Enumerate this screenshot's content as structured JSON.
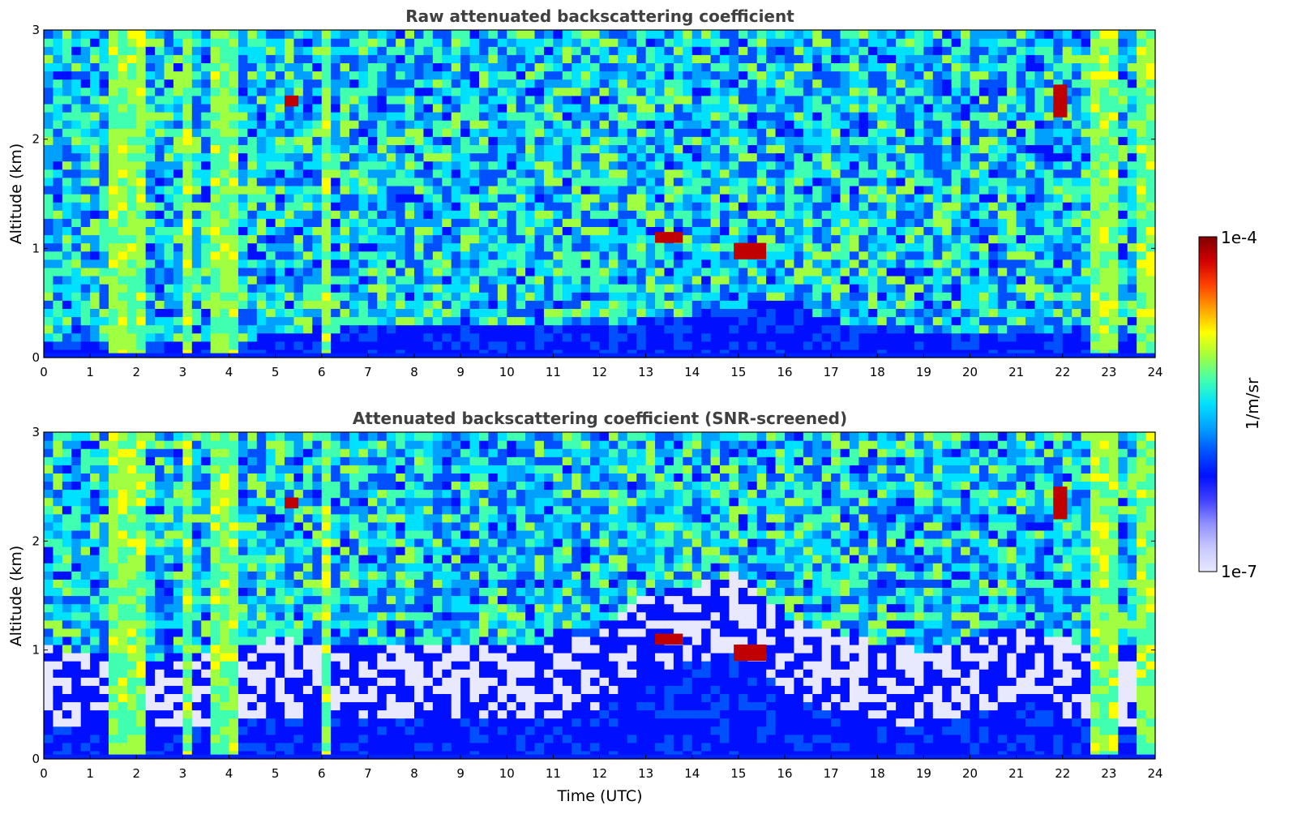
{
  "figure": {
    "colorbar": {
      "label": "1/m/sr",
      "max_label": "1e-4",
      "min_label": "1e-7",
      "colors": [
        "#e8e8ff",
        "#c8c8ff",
        "#9090ff",
        "#4040ff",
        "#0010ff",
        "#0050ff",
        "#00a0ff",
        "#00e0ff",
        "#40ffb0",
        "#a0ff40",
        "#ffff00",
        "#ffa000",
        "#ff4000",
        "#d00000",
        "#800000"
      ]
    },
    "xlabel": "Time (UTC)"
  },
  "chart_data": [
    {
      "type": "heatmap",
      "title": "Raw attenuated backscattering coefficient",
      "xlabel": "",
      "ylabel": "Altitude (km)",
      "xlim": [
        0,
        24
      ],
      "ylim": [
        0,
        3
      ],
      "xticks": [
        "0",
        "1",
        "2",
        "3",
        "4",
        "5",
        "6",
        "7",
        "8",
        "9",
        "10",
        "11",
        "12",
        "13",
        "14",
        "15",
        "16",
        "17",
        "18",
        "19",
        "20",
        "21",
        "22",
        "23",
        "24"
      ],
      "yticks": [
        "0",
        "1",
        "2",
        "3"
      ],
      "colorscale": "log10 backscatter 1e-7 to 1e-4 1/m/sr",
      "features": {
        "boundary_layer_top_km": [
          [
            0,
            0.15
          ],
          [
            2,
            0.1
          ],
          [
            5,
            0.2
          ],
          [
            8,
            0.3
          ],
          [
            12,
            0.3
          ],
          [
            14,
            0.4
          ],
          [
            16,
            0.55
          ],
          [
            17,
            0.35
          ],
          [
            19,
            0.25
          ],
          [
            22,
            0.25
          ],
          [
            24,
            0.2
          ]
        ],
        "high_signal_columns_utc": [
          [
            1.5,
            2.2
          ],
          [
            3.0,
            3.2
          ],
          [
            3.6,
            4.2
          ],
          [
            5.9,
            6.3
          ],
          [
            22.6,
            23.2
          ],
          [
            23.6,
            23.9
          ]
        ],
        "cloud_patches": [
          {
            "t": [
              13.2,
              13.8
            ],
            "alt": [
              1.05,
              1.15
            ]
          },
          {
            "t": [
              14.9,
              15.6
            ],
            "alt": [
              0.9,
              1.05
            ]
          },
          {
            "t": [
              21.8,
              22.1
            ],
            "alt": [
              2.2,
              2.5
            ]
          },
          {
            "t": [
              5.2,
              5.5
            ],
            "alt": [
              2.3,
              2.4
            ]
          }
        ]
      }
    },
    {
      "type": "heatmap",
      "title": "Attenuated backscattering coefficient (SNR-screened)",
      "xlabel": "Time (UTC)",
      "ylabel": "Altitude (km)",
      "xlim": [
        0,
        24
      ],
      "ylim": [
        0,
        3
      ],
      "xticks": [
        "0",
        "1",
        "2",
        "3",
        "4",
        "5",
        "6",
        "7",
        "8",
        "9",
        "10",
        "11",
        "12",
        "13",
        "14",
        "15",
        "16",
        "17",
        "18",
        "19",
        "20",
        "21",
        "22",
        "23",
        "24"
      ],
      "yticks": [
        "0",
        "1",
        "2",
        "3"
      ],
      "colorscale": "log10 backscatter 1e-7 to 1e-4 1/m/sr",
      "features": {
        "boundary_layer_top_km": [
          [
            0,
            0.35
          ],
          [
            2,
            0.2
          ],
          [
            5,
            0.4
          ],
          [
            7,
            0.35
          ],
          [
            10,
            0.35
          ],
          [
            12,
            0.45
          ],
          [
            13,
            0.8
          ],
          [
            14,
            0.9
          ],
          [
            15,
            1.0
          ],
          [
            16,
            0.6
          ],
          [
            17,
            0.45
          ],
          [
            19,
            0.3
          ],
          [
            21,
            0.55
          ],
          [
            22,
            0.4
          ],
          [
            24,
            0.3
          ]
        ],
        "high_signal_columns_utc": [
          [
            1.5,
            2.2
          ],
          [
            3.0,
            3.2
          ],
          [
            3.6,
            4.2
          ],
          [
            5.9,
            6.3
          ],
          [
            22.6,
            23.2
          ],
          [
            23.6,
            23.9
          ]
        ],
        "cloud_patches": [
          {
            "t": [
              13.2,
              13.8
            ],
            "alt": [
              1.05,
              1.15
            ]
          },
          {
            "t": [
              14.9,
              15.6
            ],
            "alt": [
              0.9,
              1.05
            ]
          },
          {
            "t": [
              21.8,
              22.1
            ],
            "alt": [
              2.2,
              2.5
            ]
          },
          {
            "t": [
              5.2,
              5.5
            ],
            "alt": [
              2.3,
              2.4
            ]
          }
        ]
      }
    }
  ]
}
